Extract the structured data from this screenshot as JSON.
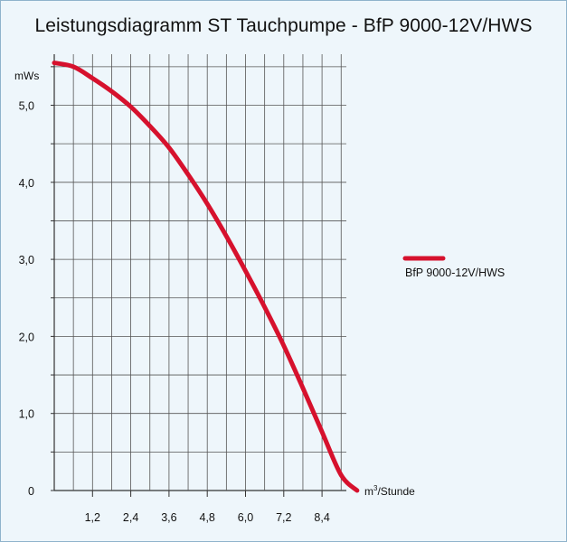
{
  "chart_data": {
    "type": "line",
    "title": "Leistungsdiagramm ST Tauchpumpe - BfP 9000-12V/HWS",
    "ylabel": "mWs",
    "xlabel_main": "m",
    "xlabel_sup": "3",
    "xlabel_rest": "/Stunde",
    "xlim": [
      0,
      9.6
    ],
    "ylim": [
      0,
      5.5
    ],
    "x_ticks": [
      1.2,
      2.4,
      3.6,
      4.8,
      6.0,
      7.2,
      8.4
    ],
    "x_tick_labels": [
      "1,2",
      "2,4",
      "3,6",
      "4,8",
      "6,0",
      "7,2",
      "8,4"
    ],
    "y_ticks": [
      0,
      1,
      2,
      3,
      4,
      5
    ],
    "y_tick_labels": [
      "0",
      "1,0",
      "2,0",
      "3,0",
      "4,0",
      "5,0"
    ],
    "grid": true,
    "legend_position": "right",
    "series": [
      {
        "name": "BfP 9000-12V/HWS",
        "color": "#d6112d",
        "x": [
          0,
          0.6,
          1.2,
          1.8,
          2.4,
          3.0,
          3.6,
          4.2,
          4.8,
          5.4,
          6.0,
          6.6,
          7.2,
          7.8,
          8.4,
          9.0,
          9.5
        ],
        "y": [
          5.55,
          5.5,
          5.35,
          5.18,
          4.98,
          4.73,
          4.45,
          4.1,
          3.72,
          3.3,
          2.85,
          2.38,
          1.88,
          1.33,
          0.76,
          0.2,
          0.0
        ]
      }
    ]
  }
}
